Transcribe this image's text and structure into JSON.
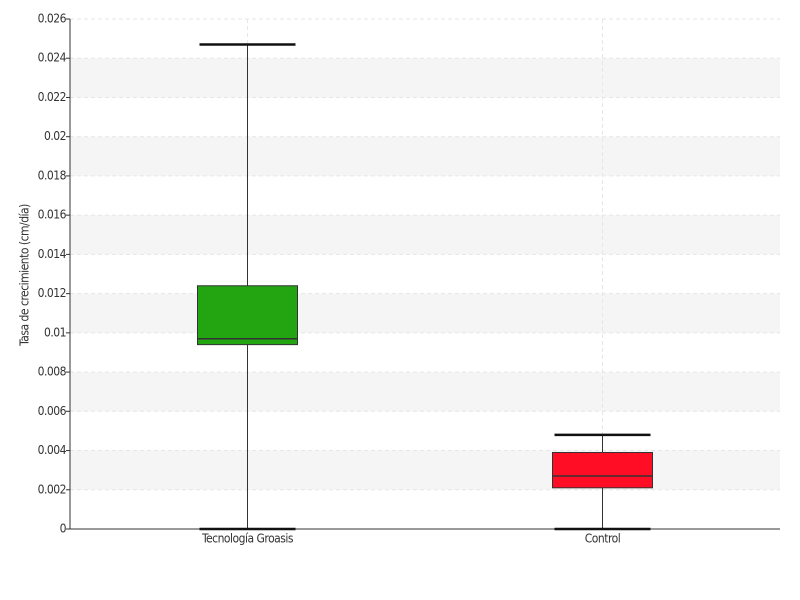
{
  "chart_data": {
    "type": "box",
    "y_label": "Tasa de crecimiento (cm/día)",
    "categories": [
      "Tecnología Groasis",
      "Control"
    ],
    "boxes": [
      {
        "min": 0,
        "q1": 0.0094,
        "median": 0.0097,
        "q3": 0.0124,
        "max": 0.0247,
        "color": "#22a511"
      },
      {
        "min": 0,
        "q1": 0.0021,
        "median": 0.0027,
        "q3": 0.0039,
        "max": 0.0048,
        "color": "#ff0d25"
      }
    ],
    "ylim": [
      0,
      0.026
    ],
    "yticks": [
      0,
      0.002,
      0.004,
      0.006,
      0.008,
      0.01,
      0.012,
      0.014,
      0.016,
      0.018,
      0.02,
      0.022,
      0.024,
      0.026
    ],
    "grid": true
  }
}
